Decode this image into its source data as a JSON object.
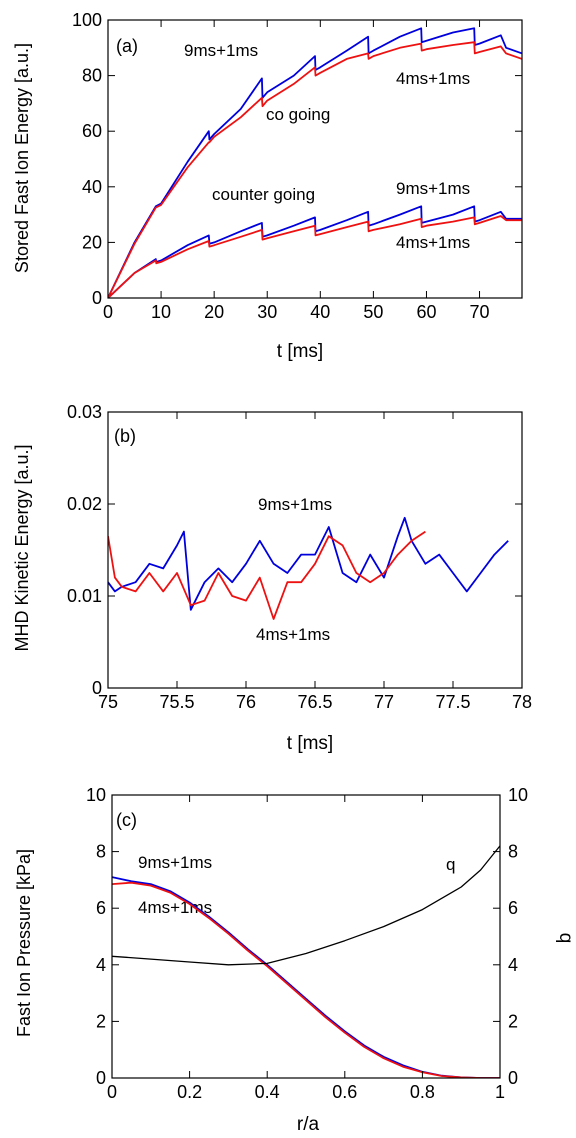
{
  "colors": {
    "series_9ms": "#0000dd",
    "series_4ms": "#ee1111",
    "q_line": "#000000",
    "axis": "#000000"
  },
  "chart_data": [
    {
      "type": "line",
      "panel_label": "(a)",
      "xlabel": "t [ms]",
      "ylabel": "Stored Fast Ion Energy [a.u.]",
      "xlim": [
        0,
        78
      ],
      "ylim": [
        0,
        100
      ],
      "xticks": [
        0,
        10,
        20,
        30,
        40,
        50,
        60,
        70
      ],
      "yticks": [
        0,
        20,
        40,
        60,
        80,
        100
      ],
      "grid": false,
      "annotations": [
        "9ms+1ms",
        "4ms+1ms",
        "co going",
        "counter going",
        "9ms+1ms",
        "4ms+1ms"
      ],
      "series": [
        {
          "name": "9ms+1ms (co going)",
          "color": "blue",
          "x": [
            0,
            5,
            9,
            10,
            15,
            19,
            19.1,
            20,
            25,
            29,
            29.1,
            30,
            35,
            39,
            39.1,
            40,
            45,
            49,
            49.1,
            50,
            55,
            59,
            59.1,
            60,
            65,
            69,
            69.1,
            70,
            74,
            75,
            78
          ],
          "y": [
            0,
            20,
            33,
            34,
            49,
            60,
            57,
            59,
            68,
            79,
            72,
            74,
            80,
            87,
            82,
            83,
            89,
            94,
            88,
            89,
            94,
            97,
            92,
            92.5,
            95.5,
            97,
            91,
            91.5,
            94.5,
            90,
            88
          ]
        },
        {
          "name": "4ms+1ms (co going)",
          "color": "red",
          "x": [
            0,
            5,
            9,
            10,
            15,
            19,
            19.1,
            20,
            25,
            29,
            29.1,
            30,
            35,
            39,
            39.1,
            40,
            45,
            49,
            49.1,
            50,
            55,
            59,
            59.1,
            60,
            65,
            69,
            69.1,
            70,
            74,
            75,
            78
          ],
          "y": [
            0,
            19.5,
            32.5,
            33.5,
            47,
            56,
            56,
            58,
            65,
            72,
            69,
            71,
            77,
            83,
            80,
            81,
            86,
            88,
            86,
            87,
            90,
            91.5,
            89,
            89.5,
            91,
            92,
            88,
            88.5,
            90.5,
            88,
            86
          ]
        },
        {
          "name": "9ms+1ms (counter going)",
          "color": "blue",
          "x": [
            0,
            5,
            9,
            9.1,
            10,
            15,
            19,
            19.1,
            20,
            25,
            29,
            29.1,
            30,
            35,
            39,
            39.1,
            40,
            45,
            49,
            49.1,
            50,
            55,
            59,
            59.1,
            60,
            65,
            69,
            69.1,
            70,
            74,
            75,
            78
          ],
          "y": [
            0,
            9,
            14,
            13,
            13.5,
            19,
            22.5,
            19.5,
            20,
            24,
            27,
            22,
            22.5,
            26,
            29,
            24,
            24.5,
            28,
            31,
            26,
            26.5,
            30,
            33,
            27,
            27.5,
            30,
            33,
            27.5,
            28,
            31,
            28.5,
            28.5
          ]
        },
        {
          "name": "4ms+1ms (counter going)",
          "color": "red",
          "x": [
            0,
            5,
            9,
            9.1,
            10,
            15,
            19,
            19.1,
            20,
            25,
            29,
            29.1,
            30,
            35,
            39,
            39.1,
            40,
            45,
            49,
            49.1,
            50,
            55,
            59,
            59.1,
            60,
            65,
            69,
            69.1,
            70,
            74,
            75,
            78
          ],
          "y": [
            0,
            9,
            13.5,
            12.5,
            13,
            17.5,
            20.5,
            18.5,
            19,
            22,
            24.5,
            21,
            21.5,
            24,
            26,
            22.5,
            23,
            25.5,
            27.5,
            24,
            24.5,
            26.5,
            28.5,
            25.5,
            26,
            27.5,
            29,
            26.5,
            27,
            29.5,
            28,
            28
          ]
        }
      ]
    },
    {
      "type": "line",
      "panel_label": "(b)",
      "xlabel": "t [ms]",
      "ylabel": "MHD Kinetic Energy [a.u.]",
      "xlim": [
        75,
        78
      ],
      "ylim": [
        0,
        0.03
      ],
      "xticks": [
        75,
        75.5,
        76,
        76.5,
        77,
        77.5,
        78
      ],
      "yticks": [
        0,
        0.01,
        0.02,
        0.03
      ],
      "ytick_labels": [
        "0",
        "0.01",
        "0.02",
        "0.03"
      ],
      "grid": false,
      "annotations": [
        "9ms+1ms",
        "4ms+1ms"
      ],
      "series": [
        {
          "name": "9ms+1ms",
          "color": "blue",
          "x": [
            75,
            75.05,
            75.1,
            75.2,
            75.3,
            75.4,
            75.5,
            75.55,
            75.6,
            75.7,
            75.8,
            75.9,
            76,
            76.1,
            76.2,
            76.3,
            76.4,
            76.5,
            76.6,
            76.7,
            76.8,
            76.9,
            77,
            77.1,
            77.15,
            77.2,
            77.3,
            77.4,
            77.5,
            77.6,
            77.7,
            77.8,
            77.9
          ],
          "y": [
            0.0115,
            0.0105,
            0.011,
            0.0115,
            0.0135,
            0.013,
            0.0155,
            0.017,
            0.0085,
            0.0115,
            0.013,
            0.0115,
            0.0135,
            0.016,
            0.0135,
            0.0125,
            0.0145,
            0.0145,
            0.0175,
            0.0125,
            0.0115,
            0.0145,
            0.012,
            0.0165,
            0.0185,
            0.016,
            0.0135,
            0.0145,
            0.0125,
            0.0105,
            0.0125,
            0.0145,
            0.016
          ]
        },
        {
          "name": "4ms+1ms",
          "color": "red",
          "x": [
            75,
            75.05,
            75.1,
            75.2,
            75.3,
            75.4,
            75.5,
            75.6,
            75.7,
            75.8,
            75.9,
            76,
            76.1,
            76.2,
            76.3,
            76.4,
            76.5,
            76.6,
            76.7,
            76.8,
            76.9,
            77,
            77.1,
            77.2,
            77.3
          ],
          "y": [
            0.0165,
            0.012,
            0.011,
            0.0105,
            0.0125,
            0.0105,
            0.0125,
            0.009,
            0.0095,
            0.0125,
            0.01,
            0.0095,
            0.012,
            0.0075,
            0.0115,
            0.0115,
            0.0135,
            0.0165,
            0.0155,
            0.0125,
            0.0115,
            0.0125,
            0.0145,
            0.016,
            0.017
          ]
        }
      ]
    },
    {
      "type": "line",
      "panel_label": "(c)",
      "xlabel": "r/a",
      "ylabel": "Fast Ion Pressure [kPa]",
      "ylabel_right": "q",
      "xlim": [
        0,
        1
      ],
      "ylim": [
        0,
        10
      ],
      "ylim_right": [
        0,
        10
      ],
      "xticks": [
        0,
        0.2,
        0.4,
        0.6,
        0.8,
        1
      ],
      "yticks": [
        0,
        2,
        4,
        6,
        8,
        10
      ],
      "grid": false,
      "annotations": [
        "9ms+1ms",
        "4ms+1ms",
        "q"
      ],
      "series": [
        {
          "name": "9ms+1ms",
          "color": "blue",
          "x": [
            0,
            0.05,
            0.1,
            0.15,
            0.2,
            0.25,
            0.3,
            0.35,
            0.4,
            0.45,
            0.5,
            0.55,
            0.6,
            0.65,
            0.7,
            0.75,
            0.8,
            0.85,
            0.9,
            0.95,
            1
          ],
          "y": [
            7.1,
            6.95,
            6.85,
            6.6,
            6.2,
            5.7,
            5.15,
            4.55,
            4.0,
            3.4,
            2.8,
            2.2,
            1.65,
            1.15,
            0.75,
            0.45,
            0.22,
            0.08,
            0.02,
            0.0,
            0.0
          ]
        },
        {
          "name": "4ms+1ms",
          "color": "red",
          "x": [
            0,
            0.05,
            0.1,
            0.15,
            0.2,
            0.25,
            0.3,
            0.35,
            0.4,
            0.45,
            0.5,
            0.55,
            0.6,
            0.65,
            0.7,
            0.75,
            0.8,
            0.85,
            0.9,
            0.95,
            1
          ],
          "y": [
            6.85,
            6.9,
            6.8,
            6.55,
            6.15,
            5.65,
            5.1,
            4.5,
            3.95,
            3.35,
            2.75,
            2.15,
            1.6,
            1.1,
            0.7,
            0.4,
            0.2,
            0.07,
            0.02,
            0.0,
            0.0
          ]
        },
        {
          "name": "q",
          "color": "black",
          "axis": "right",
          "x": [
            0,
            0.1,
            0.2,
            0.3,
            0.4,
            0.5,
            0.6,
            0.7,
            0.8,
            0.9,
            0.95,
            1
          ],
          "y": [
            4.3,
            4.2,
            4.1,
            4.0,
            4.05,
            4.4,
            4.85,
            5.35,
            5.95,
            6.75,
            7.35,
            8.2
          ]
        }
      ]
    }
  ]
}
